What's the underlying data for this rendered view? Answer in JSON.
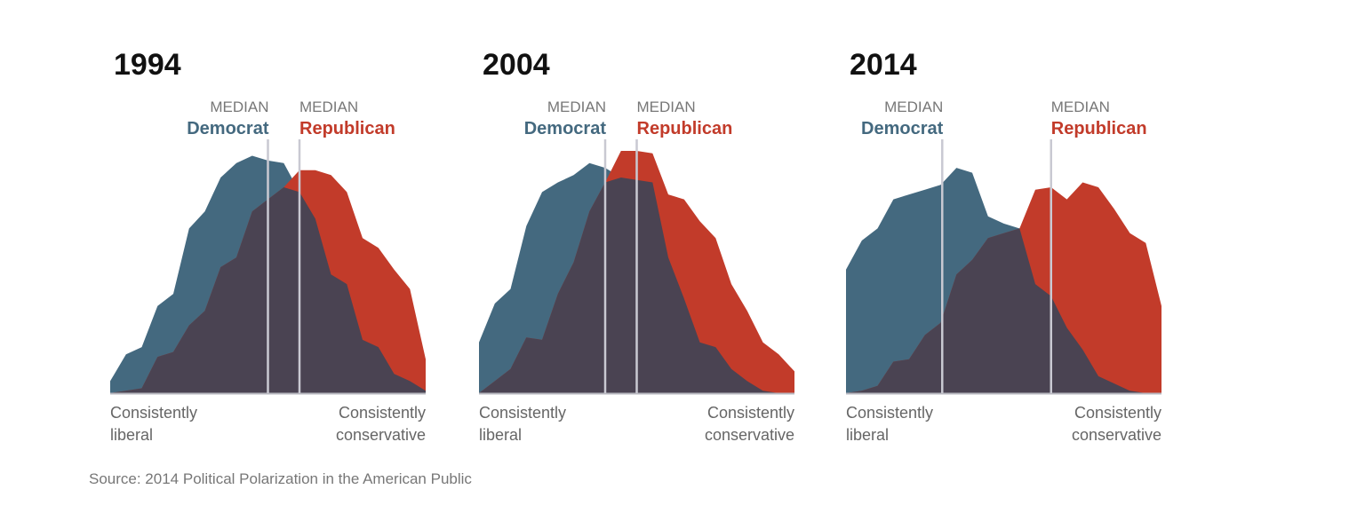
{
  "chart_data": [
    {
      "type": "area",
      "title": "1994",
      "x_range": [
        0,
        20
      ],
      "xlabel_left": [
        "Consistently",
        "liberal"
      ],
      "xlabel_right": [
        "Consistently",
        "conservative"
      ],
      "series": [
        {
          "name": "Democrat",
          "color": "#44697f",
          "values": [
            5,
            16,
            19,
            36,
            41,
            68,
            75,
            89,
            95,
            98,
            96,
            95,
            83,
            72,
            49,
            45,
            22,
            19,
            8,
            5,
            1
          ],
          "median": 10,
          "median_label": "MEDIAN"
        },
        {
          "name": "Republican",
          "color": "#c23b2a",
          "values": [
            0,
            1,
            2,
            15,
            17,
            28,
            34,
            52,
            56,
            75,
            80,
            85,
            92,
            92,
            90,
            83,
            64,
            60,
            51,
            43,
            14
          ],
          "median": 12,
          "median_label": "MEDIAN"
        }
      ],
      "overlap_color": "#4a4352"
    },
    {
      "type": "area",
      "title": "2004",
      "x_range": [
        0,
        20
      ],
      "xlabel_left": [
        "Consistently",
        "liberal"
      ],
      "xlabel_right": [
        "Consistently",
        "conservative"
      ],
      "series": [
        {
          "name": "Democrat",
          "color": "#44697f",
          "values": [
            21,
            37,
            43,
            69,
            83,
            87,
            90,
            95,
            93,
            89,
            88,
            87,
            56,
            39,
            21,
            19,
            10,
            5,
            1,
            0,
            0
          ],
          "median": 8,
          "median_label": "MEDIAN"
        },
        {
          "name": "Republican",
          "color": "#c23b2a",
          "values": [
            0,
            5,
            10,
            23,
            22,
            41,
            54,
            75,
            87,
            100,
            100,
            99,
            82,
            80,
            71,
            64,
            45,
            34,
            21,
            16,
            9
          ],
          "median": 10,
          "median_label": "MEDIAN"
        }
      ],
      "overlap_color": "#4a4352"
    },
    {
      "type": "area",
      "title": "2014",
      "x_range": [
        0,
        20
      ],
      "xlabel_left": [
        "Consistently",
        "liberal"
      ],
      "xlabel_right": [
        "Consistently",
        "conservative"
      ],
      "series": [
        {
          "name": "Democrat",
          "color": "#44697f",
          "values": [
            51,
            63,
            68,
            80,
            82,
            84,
            86,
            93,
            91,
            73,
            70,
            68,
            45,
            40,
            27,
            18,
            7,
            4,
            1,
            0,
            0
          ],
          "median": 6.1,
          "median_label": "MEDIAN"
        },
        {
          "name": "Republican",
          "color": "#c23b2a",
          "values": [
            0,
            1,
            3,
            13,
            14,
            24,
            29,
            49,
            55,
            64,
            66,
            68,
            84,
            85,
            80,
            87,
            85,
            76,
            66,
            62,
            36
          ],
          "median": 13,
          "median_label": "MEDIAN"
        }
      ],
      "overlap_color": "#4a4352"
    }
  ],
  "source": "Source: 2014 Political Polarization in the American Public"
}
